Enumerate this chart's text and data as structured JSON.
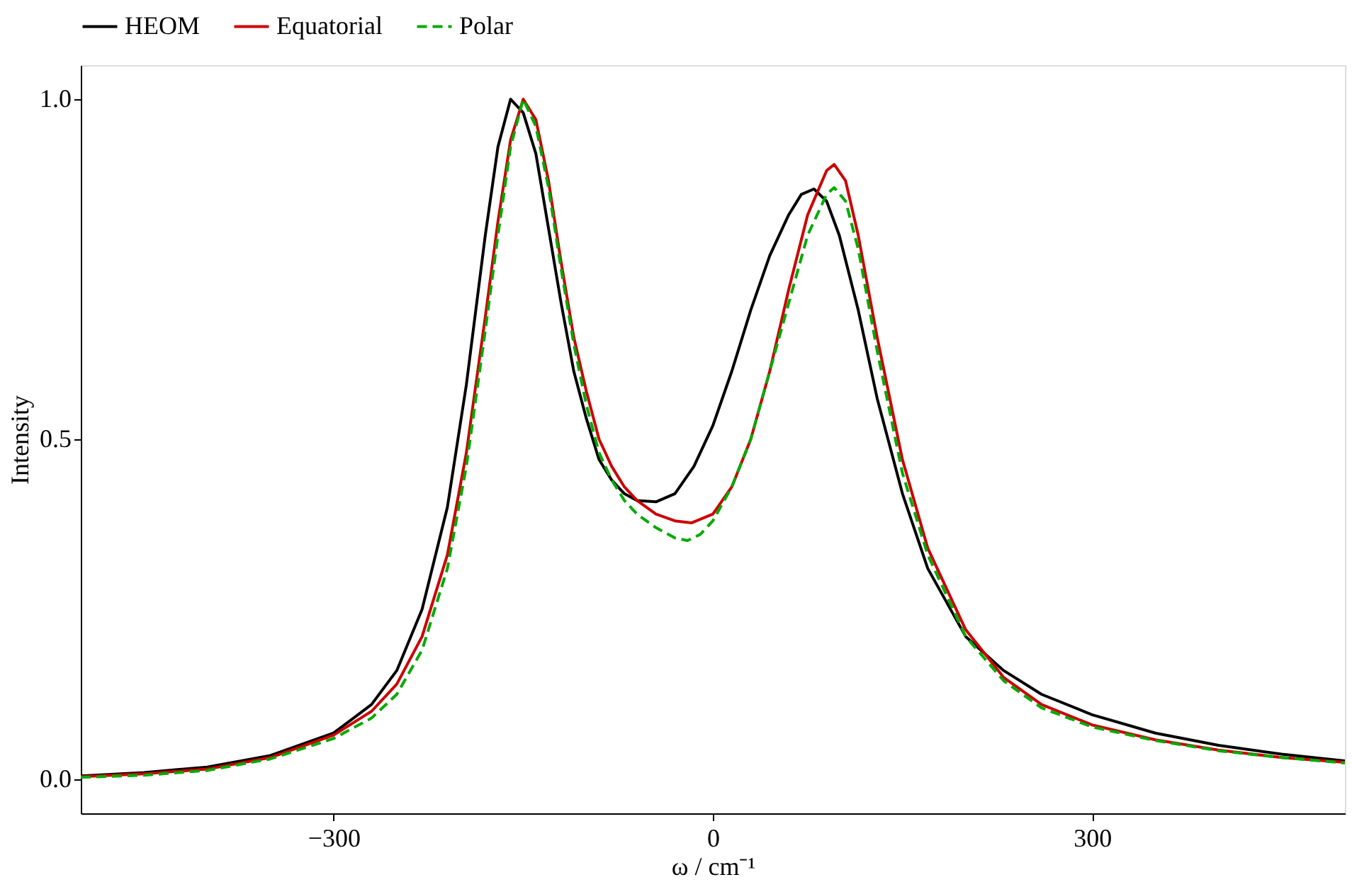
{
  "chart_data": {
    "type": "line",
    "xlabel": "ω / cm⁻¹",
    "ylabel": "Intensity",
    "xlim": [
      -500,
      500
    ],
    "ylim": [
      -0.05,
      1.05
    ],
    "xticks": [
      {
        "value": -300,
        "label": "−300"
      },
      0,
      300
    ],
    "yticks": [
      {
        "value": 0,
        "label": "0.0"
      },
      0.5,
      {
        "value": 1,
        "label": "1.0"
      }
    ],
    "grid": false,
    "legend": "top",
    "marker": "none",
    "series": [
      {
        "name": "HEOM",
        "color": "#000000",
        "line_style": "solid",
        "x": [
          -500,
          -450,
          -400,
          -350,
          -300,
          -270,
          -250,
          -230,
          -210,
          -195,
          -180,
          -170,
          -160,
          -150,
          -140,
          -130,
          -120,
          -110,
          -100,
          -90,
          -80,
          -70,
          -60,
          -45,
          -30,
          -15,
          0,
          15,
          30,
          45,
          60,
          70,
          80,
          90,
          100,
          115,
          130,
          150,
          170,
          200,
          230,
          260,
          300,
          350,
          400,
          450,
          500
        ],
        "values": [
          0.005,
          0.01,
          0.018,
          0.035,
          0.068,
          0.11,
          0.16,
          0.25,
          0.4,
          0.58,
          0.8,
          0.93,
          1.0,
          0.98,
          0.92,
          0.81,
          0.7,
          0.6,
          0.53,
          0.47,
          0.44,
          0.42,
          0.41,
          0.408,
          0.42,
          0.46,
          0.52,
          0.6,
          0.69,
          0.77,
          0.83,
          0.86,
          0.868,
          0.85,
          0.8,
          0.69,
          0.56,
          0.42,
          0.31,
          0.21,
          0.16,
          0.125,
          0.095,
          0.068,
          0.05,
          0.037,
          0.027
        ]
      },
      {
        "name": "Equatorial",
        "color": "#cc0000",
        "line_style": "solid",
        "x": [
          -500,
          -450,
          -400,
          -350,
          -300,
          -270,
          -250,
          -230,
          -210,
          -195,
          -180,
          -170,
          -160,
          -150,
          -140,
          -130,
          -120,
          -110,
          -100,
          -90,
          -80,
          -70,
          -60,
          -45,
          -30,
          -17,
          0,
          15,
          30,
          45,
          60,
          75,
          90,
          96,
          105,
          115,
          130,
          150,
          170,
          200,
          230,
          260,
          300,
          350,
          400,
          450,
          500
        ],
        "values": [
          0.004,
          0.008,
          0.015,
          0.032,
          0.065,
          0.1,
          0.14,
          0.21,
          0.33,
          0.48,
          0.68,
          0.82,
          0.94,
          1.0,
          0.97,
          0.88,
          0.76,
          0.65,
          0.57,
          0.5,
          0.46,
          0.43,
          0.41,
          0.39,
          0.38,
          0.377,
          0.39,
          0.43,
          0.5,
          0.6,
          0.72,
          0.83,
          0.895,
          0.904,
          0.88,
          0.8,
          0.65,
          0.47,
          0.34,
          0.22,
          0.15,
          0.11,
          0.08,
          0.058,
          0.043,
          0.032,
          0.025
        ]
      },
      {
        "name": "Polar",
        "color": "#00aa00",
        "line_style": "dashed",
        "x": [
          -500,
          -450,
          -400,
          -350,
          -300,
          -270,
          -250,
          -230,
          -210,
          -195,
          -180,
          -170,
          -160,
          -150,
          -140,
          -130,
          -120,
          -110,
          -100,
          -90,
          -80,
          -70,
          -60,
          -45,
          -30,
          -20,
          -10,
          0,
          15,
          30,
          45,
          60,
          75,
          90,
          96,
          105,
          115,
          130,
          150,
          170,
          200,
          230,
          260,
          300,
          350,
          400,
          450,
          500
        ],
        "values": [
          0.003,
          0.006,
          0.013,
          0.03,
          0.06,
          0.09,
          0.125,
          0.19,
          0.31,
          0.46,
          0.66,
          0.8,
          0.93,
          1.0,
          0.96,
          0.87,
          0.75,
          0.64,
          0.55,
          0.48,
          0.44,
          0.41,
          0.39,
          0.37,
          0.355,
          0.351,
          0.36,
          0.38,
          0.43,
          0.5,
          0.6,
          0.7,
          0.8,
          0.86,
          0.87,
          0.85,
          0.78,
          0.63,
          0.45,
          0.33,
          0.21,
          0.145,
          0.105,
          0.077,
          0.057,
          0.042,
          0.032,
          0.024
        ]
      }
    ]
  }
}
